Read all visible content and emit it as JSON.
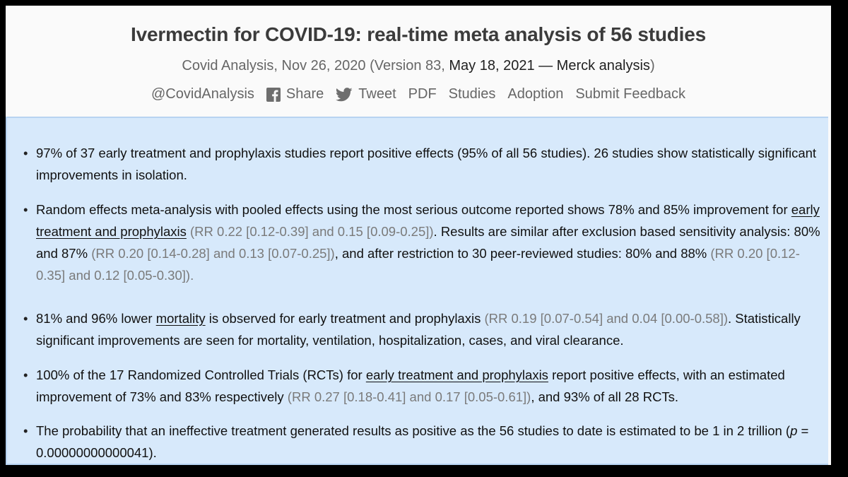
{
  "title": "Ivermectin for COVID-19: real-time meta analysis of 56 studies",
  "subtitle": {
    "prefix": "Covid Analysis, Nov 26, 2020 (Version 83, ",
    "date": "May 18, 2021 — Merck analysis",
    "suffix": ")"
  },
  "links": {
    "handle": "@CovidAnalysis",
    "share": "Share",
    "tweet": "Tweet",
    "pdf": "PDF",
    "studies": "Studies",
    "adoption": "Adoption",
    "feedback": "Submit Feedback"
  },
  "bullets": {
    "b1": {
      "text": "97% of 37 early treatment and prophylaxis studies report positive effects (95% of all 56 studies). 26 studies show statistically significant improvements in isolation."
    },
    "b2": {
      "t1": "Random effects meta-analysis with pooled effects using the most serious outcome reported shows 78% and 85% improvement for ",
      "link": "early treatment and prophylaxis",
      "g1": "(RR 0.22 [0.12-0.39] and 0.15 [0.09-0.25])",
      "t2": ". Results are similar after exclusion based sensitivity analysis: 80% and 87% ",
      "g2": "(RR 0.20 [0.14-0.28] and 0.13 [0.07-0.25])",
      "t3": ", and after restriction to 30 peer-reviewed studies: 80% and 88% ",
      "g3": "(RR 0.20 [0.12-0.35] and 0.12 [0.05-0.30])",
      "t4": "."
    },
    "b3": {
      "t1": "81% and 96% lower ",
      "link": "mortality",
      "t2": " is observed for early treatment and prophylaxis ",
      "g1": "(RR 0.19 [0.07-0.54] and 0.04 [0.00-0.58])",
      "t3": ". Statistically significant improvements are seen for mortality, ventilation, hospitalization, cases, and viral clearance."
    },
    "b4": {
      "t1": "100% of the 17 Randomized Controlled Trials (RCTs) for ",
      "link": "early treatment and prophylaxis",
      "t2": " report positive effects, with an estimated improvement of 73% and 83% respectively ",
      "g1": "(RR 0.27 [0.18-0.41] and 0.17 [0.05-0.61])",
      "t3": ", and 93% of all 28 RCTs."
    },
    "b5": {
      "t1": "The probability that an ineffective treatment generated results as positive as the 56 studies to date is estimated to be 1 in 2 trillion (",
      "p": "p",
      "t2": " = 0.00000000000041)."
    }
  }
}
